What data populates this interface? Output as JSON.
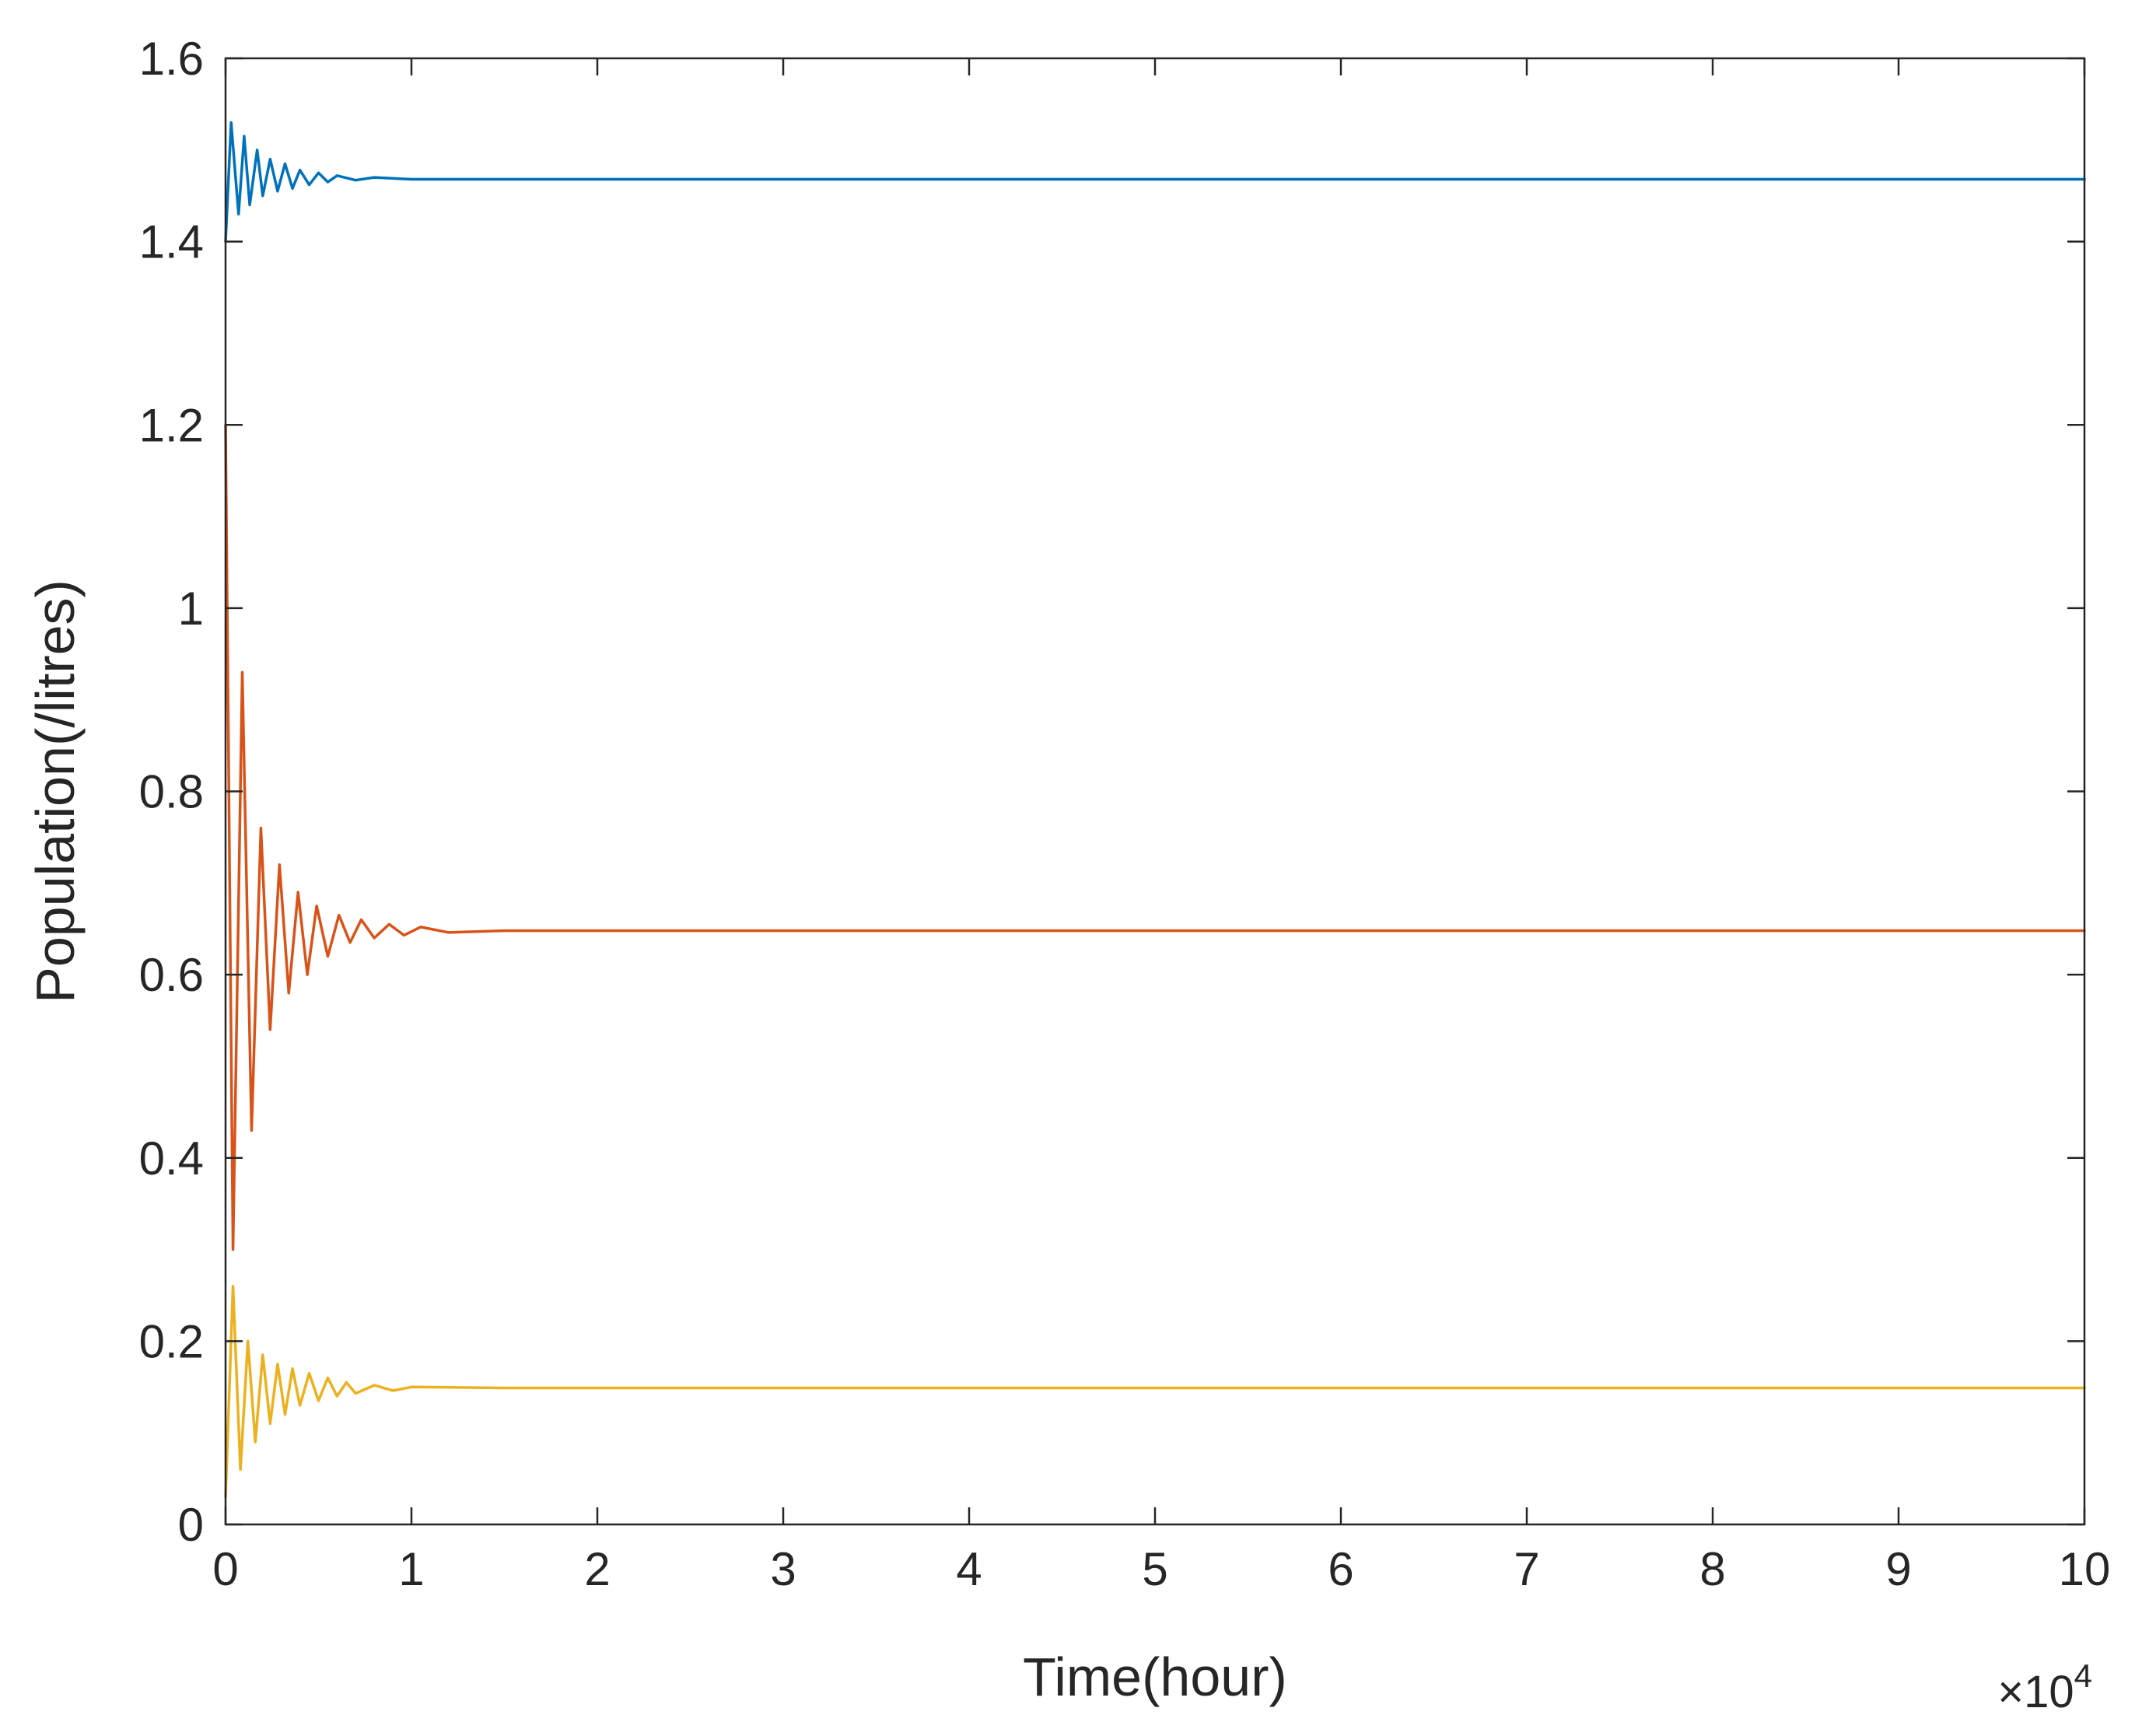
{
  "chart_data": {
    "type": "line",
    "title": "",
    "xlabel": "Time(hour)",
    "ylabel": "Population(/litres)",
    "x_multiplier": {
      "base": "×10",
      "exponent": "4"
    },
    "xlim": [
      0,
      10
    ],
    "ylim": [
      0,
      1.6
    ],
    "x_ticks": [
      0,
      1,
      2,
      3,
      4,
      5,
      6,
      7,
      8,
      9,
      10
    ],
    "x_tick_labels": [
      "0",
      "1",
      "2",
      "3",
      "4",
      "5",
      "6",
      "7",
      "8",
      "9",
      "10"
    ],
    "y_ticks": [
      0,
      0.2,
      0.4,
      0.6,
      0.8,
      1.0,
      1.2,
      1.4,
      1.6
    ],
    "y_tick_labels": [
      "0",
      "0.2",
      "0.4",
      "0.6",
      "0.8",
      "1",
      "1.2",
      "1.4",
      "1.6"
    ],
    "grid": false,
    "legend": "none",
    "series": [
      {
        "color": "#0072BD",
        "x": [
          0,
          0.03,
          0.07,
          0.1,
          0.13,
          0.17,
          0.2,
          0.24,
          0.28,
          0.32,
          0.36,
          0.4,
          0.45,
          0.5,
          0.55,
          0.6,
          0.7,
          0.8,
          1.0,
          1.5,
          10
        ],
        "y": [
          1.4,
          1.53,
          1.43,
          1.515,
          1.44,
          1.5,
          1.45,
          1.49,
          1.455,
          1.485,
          1.458,
          1.478,
          1.462,
          1.475,
          1.465,
          1.472,
          1.467,
          1.47,
          1.468,
          1.468,
          1.468
        ]
      },
      {
        "color": "#D95319",
        "x": [
          0,
          0.04,
          0.09,
          0.14,
          0.19,
          0.24,
          0.29,
          0.34,
          0.39,
          0.44,
          0.49,
          0.55,
          0.61,
          0.67,
          0.73,
          0.8,
          0.88,
          0.96,
          1.05,
          1.2,
          1.5,
          10
        ],
        "y": [
          1.2,
          0.3,
          0.93,
          0.43,
          0.76,
          0.54,
          0.72,
          0.58,
          0.69,
          0.6,
          0.675,
          0.62,
          0.665,
          0.635,
          0.66,
          0.64,
          0.655,
          0.643,
          0.652,
          0.646,
          0.648,
          0.648
        ]
      },
      {
        "color": "#EDB120",
        "x": [
          0,
          0.04,
          0.08,
          0.12,
          0.16,
          0.2,
          0.24,
          0.28,
          0.32,
          0.36,
          0.4,
          0.45,
          0.5,
          0.55,
          0.6,
          0.65,
          0.7,
          0.8,
          0.9,
          1.0,
          1.5,
          10
        ],
        "y": [
          0.03,
          0.26,
          0.06,
          0.2,
          0.09,
          0.185,
          0.11,
          0.175,
          0.12,
          0.17,
          0.13,
          0.165,
          0.135,
          0.16,
          0.14,
          0.155,
          0.143,
          0.152,
          0.146,
          0.15,
          0.149,
          0.149
        ]
      }
    ]
  }
}
